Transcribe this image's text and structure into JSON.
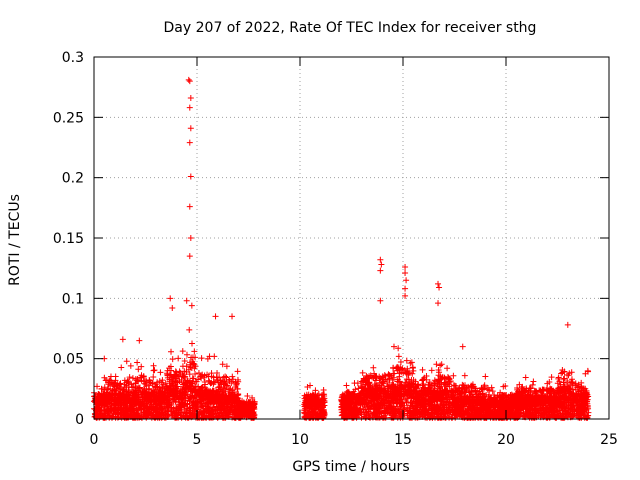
{
  "chart_data": {
    "type": "scatter",
    "title": "Day 207 of 2022, Rate Of TEC Index for receiver sthg",
    "xlabel": "GPS time / hours",
    "ylabel": "ROTI / TECUs",
    "xlim": [
      0,
      25
    ],
    "ylim": [
      0,
      0.3
    ],
    "xticks": [
      0,
      5,
      10,
      15,
      20,
      25
    ],
    "xtick_labels": [
      "0",
      "5",
      "10",
      "15",
      "20",
      "25"
    ],
    "yticks": [
      0,
      0.05,
      0.1,
      0.15,
      0.2,
      0.25,
      0.3
    ],
    "ytick_labels": [
      "0",
      "0.05",
      "0.1",
      "0.15",
      "0.2",
      "0.25",
      "0.3"
    ],
    "grid": true,
    "marker": "+",
    "marker_color": "#ff0000",
    "data_gaps_hours": [
      [
        7.8,
        10.2
      ],
      [
        11.2,
        12.0
      ]
    ],
    "notable_points": [
      {
        "x": 4.6,
        "y": 0.281
      },
      {
        "x": 4.65,
        "y": 0.28
      },
      {
        "x": 4.7,
        "y": 0.266
      },
      {
        "x": 4.65,
        "y": 0.258
      },
      {
        "x": 4.7,
        "y": 0.241
      },
      {
        "x": 4.65,
        "y": 0.229
      },
      {
        "x": 4.7,
        "y": 0.201
      },
      {
        "x": 4.65,
        "y": 0.176
      },
      {
        "x": 4.7,
        "y": 0.15
      },
      {
        "x": 4.65,
        "y": 0.135
      },
      {
        "x": 3.7,
        "y": 0.1
      },
      {
        "x": 3.8,
        "y": 0.092
      },
      {
        "x": 4.5,
        "y": 0.098
      },
      {
        "x": 4.75,
        "y": 0.094
      },
      {
        "x": 5.9,
        "y": 0.085
      },
      {
        "x": 6.7,
        "y": 0.085
      },
      {
        "x": 13.9,
        "y": 0.132
      },
      {
        "x": 13.95,
        "y": 0.128
      },
      {
        "x": 13.9,
        "y": 0.123
      },
      {
        "x": 13.9,
        "y": 0.098
      },
      {
        "x": 15.1,
        "y": 0.126
      },
      {
        "x": 15.1,
        "y": 0.121
      },
      {
        "x": 15.15,
        "y": 0.115
      },
      {
        "x": 15.1,
        "y": 0.108
      },
      {
        "x": 15.1,
        "y": 0.102
      },
      {
        "x": 16.7,
        "y": 0.112
      },
      {
        "x": 16.75,
        "y": 0.109
      },
      {
        "x": 16.7,
        "y": 0.096
      },
      {
        "x": 23.0,
        "y": 0.078
      },
      {
        "x": 17.9,
        "y": 0.06
      },
      {
        "x": 1.4,
        "y": 0.066
      },
      {
        "x": 0.5,
        "y": 0.05
      },
      {
        "x": 2.2,
        "y": 0.065
      }
    ],
    "series_envelope": [
      {
        "x": [
          0.0,
          0.5
        ],
        "median_y": 0.012,
        "max_y": 0.03
      },
      {
        "x": [
          0.5,
          1.5
        ],
        "median_y": 0.013,
        "max_y": 0.045
      },
      {
        "x": [
          1.5,
          2.5
        ],
        "median_y": 0.014,
        "max_y": 0.05
      },
      {
        "x": [
          2.5,
          3.5
        ],
        "median_y": 0.014,
        "max_y": 0.045
      },
      {
        "x": [
          3.5,
          4.3
        ],
        "median_y": 0.016,
        "max_y": 0.06
      },
      {
        "x": [
          4.3,
          5.0
        ],
        "median_y": 0.02,
        "max_y": 0.08
      },
      {
        "x": [
          5.0,
          6.0
        ],
        "median_y": 0.015,
        "max_y": 0.055
      },
      {
        "x": [
          6.0,
          7.0
        ],
        "median_y": 0.013,
        "max_y": 0.05
      },
      {
        "x": [
          7.0,
          7.8
        ],
        "median_y": 0.008,
        "max_y": 0.02
      },
      {
        "x": [
          10.2,
          11.2
        ],
        "median_y": 0.01,
        "max_y": 0.028
      },
      {
        "x": [
          12.0,
          13.0
        ],
        "median_y": 0.012,
        "max_y": 0.03
      },
      {
        "x": [
          13.0,
          14.5
        ],
        "median_y": 0.016,
        "max_y": 0.05
      },
      {
        "x": [
          14.5,
          15.5
        ],
        "median_y": 0.018,
        "max_y": 0.06
      },
      {
        "x": [
          15.5,
          16.5
        ],
        "median_y": 0.015,
        "max_y": 0.045
      },
      {
        "x": [
          16.5,
          17.5
        ],
        "median_y": 0.015,
        "max_y": 0.05
      },
      {
        "x": [
          17.5,
          19.0
        ],
        "median_y": 0.012,
        "max_y": 0.04
      },
      {
        "x": [
          19.0,
          20.5
        ],
        "median_y": 0.01,
        "max_y": 0.028
      },
      {
        "x": [
          20.5,
          22.5
        ],
        "median_y": 0.012,
        "max_y": 0.035
      },
      {
        "x": [
          22.5,
          23.3
        ],
        "median_y": 0.016,
        "max_y": 0.055
      },
      {
        "x": [
          23.3,
          24.0
        ],
        "median_y": 0.013,
        "max_y": 0.04
      }
    ]
  }
}
